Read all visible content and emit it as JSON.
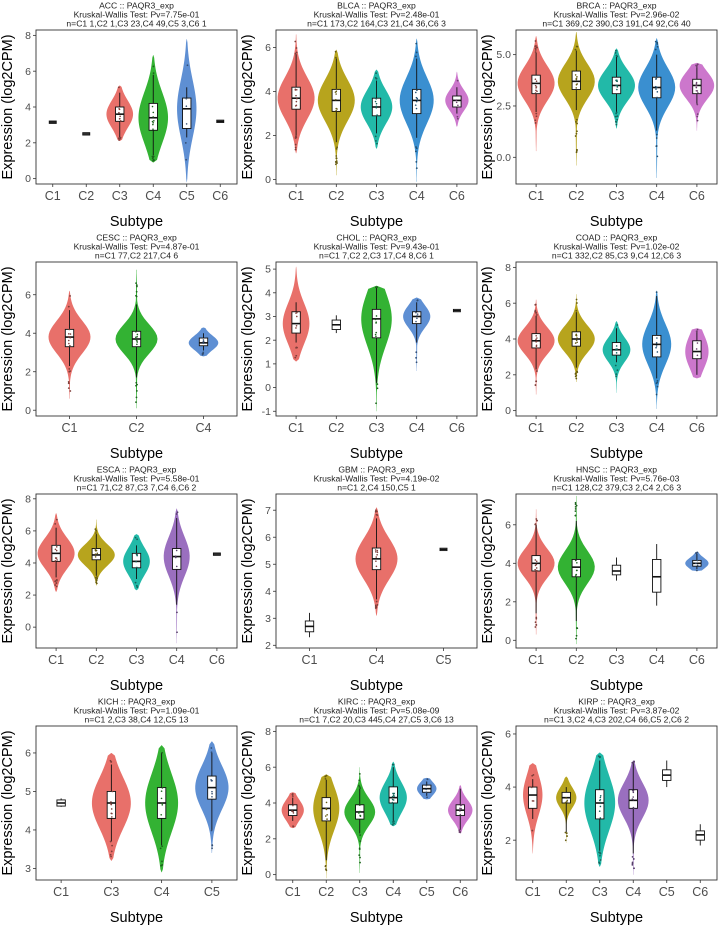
{
  "chart_data": [
    {
      "type": "violin",
      "title": "ACC :: PAQR3_exp",
      "subtitle": "Kruskal-Wallis Test: Pv=7.75e-01",
      "counts": "n=C1 1,C2 1,C3 23,C4 49,C5 3,C6 1",
      "xlabel": "Subtype",
      "ylabel": "Expression (log2CPM)",
      "ylim": [
        -0.3,
        8.3
      ],
      "yticks": [
        0,
        2,
        4,
        6,
        8
      ],
      "categories": [
        "C1",
        "C2",
        "C3",
        "C4",
        "C5",
        "C6"
      ],
      "groups": [
        {
          "category": "C1",
          "color": "#e8706a",
          "n": 1,
          "median": 3.15
        },
        {
          "category": "C2",
          "color": "#b7a41d",
          "n": 1,
          "median": 2.5
        },
        {
          "category": "C3",
          "color": "#e8706a",
          "n": 23,
          "min": 2.3,
          "q1": 3.2,
          "median": 3.6,
          "q3": 4.0,
          "max": 4.8,
          "vmin": 2.1,
          "vmax": 5.2
        },
        {
          "category": "C4",
          "color": "#33b233",
          "n": 49,
          "min": 1.3,
          "q1": 2.7,
          "median": 3.4,
          "q3": 4.2,
          "max": 5.8,
          "vmin": 0.9,
          "vmax": 6.9
        },
        {
          "category": "C5",
          "color": "#5e8fd3",
          "n": 3,
          "min": 2.3,
          "q1": 2.8,
          "median": 3.9,
          "q3": 4.5,
          "max": 5.1,
          "vmin": -0.2,
          "vmax": 7.8
        },
        {
          "category": "C6",
          "color": "#cc77cc",
          "n": 1,
          "median": 3.2
        }
      ]
    },
    {
      "type": "violin",
      "title": "BLCA :: PAQR3_exp",
      "subtitle": "Kruskal-Wallis Test: Pv=2.48e-01",
      "counts": "n=C1 173,C2 164,C3 21,C4 36,C6 3",
      "xlabel": "Subtype",
      "ylabel": "Expression (log2CPM)",
      "ylim": [
        -0.2,
        6.8
      ],
      "yticks": [
        0,
        2,
        4,
        6
      ],
      "categories": [
        "C1",
        "C2",
        "C3",
        "C4",
        "C6"
      ],
      "groups": [
        {
          "category": "C1",
          "color": "#e8706a",
          "n": 173,
          "min": 2.0,
          "q1": 3.2,
          "median": 3.7,
          "q3": 4.2,
          "max": 5.7,
          "vmin": 1.2,
          "vmax": 6.6
        },
        {
          "category": "C2",
          "color": "#b7a41d",
          "n": 164,
          "min": 1.7,
          "q1": 3.1,
          "median": 3.6,
          "q3": 4.1,
          "max": 5.5,
          "vmin": 0.2,
          "vmax": 5.9
        },
        {
          "category": "C3",
          "color": "#22b9a8",
          "n": 21,
          "min": 2.1,
          "q1": 2.9,
          "median": 3.3,
          "q3": 3.7,
          "max": 4.5,
          "vmin": 1.4,
          "vmax": 5.0
        },
        {
          "category": "C4",
          "color": "#3a8fd0",
          "n": 36,
          "min": 1.9,
          "q1": 3.0,
          "median": 3.6,
          "q3": 4.1,
          "max": 5.5,
          "vmin": -0.1,
          "vmax": 6.4
        },
        {
          "category": "C6",
          "color": "#cc77cc",
          "n": 3,
          "min": 3.0,
          "q1": 3.3,
          "median": 3.6,
          "q3": 3.8,
          "max": 4.2,
          "vmin": 2.4,
          "vmax": 4.9
        }
      ]
    },
    {
      "type": "violin",
      "title": "BRCA :: PAQR3_exp",
      "subtitle": "Kruskal-Wallis Test: Pv=2.96e-02",
      "counts": "n=C1 369,C2 390,C3 191,C4 92,C6 40",
      "xlabel": "Subtype",
      "ylabel": "Expression (log2CPM)",
      "ylim": [
        -1.3,
        6.2
      ],
      "yticks": [
        0,
        2.5,
        5
      ],
      "ytick_labels": [
        "0.0",
        "2.5",
        "5.0"
      ],
      "categories": [
        "C1",
        "C2",
        "C3",
        "C4",
        "C6"
      ],
      "groups": [
        {
          "category": "C1",
          "color": "#e8706a",
          "n": 369,
          "min": 2.2,
          "q1": 3.1,
          "median": 3.6,
          "q3": 4.0,
          "max": 5.1,
          "vmin": 0.3,
          "vmax": 5.9
        },
        {
          "category": "C2",
          "color": "#b7a41d",
          "n": 390,
          "min": 2.3,
          "q1": 3.3,
          "median": 3.7,
          "q3": 4.2,
          "max": 5.2,
          "vmin": -0.4,
          "vmax": 6.1
        },
        {
          "category": "C3",
          "color": "#22b9a8",
          "n": 191,
          "min": 2.2,
          "q1": 3.1,
          "median": 3.5,
          "q3": 3.9,
          "max": 4.9,
          "vmin": 1.4,
          "vmax": 5.3
        },
        {
          "category": "C4",
          "color": "#3a8fd0",
          "n": 92,
          "min": 1.3,
          "q1": 2.9,
          "median": 3.4,
          "q3": 3.9,
          "max": 5.0,
          "vmin": -1.0,
          "vmax": 5.8
        },
        {
          "category": "C6",
          "color": "#cc77cc",
          "n": 40,
          "min": 2.6,
          "q1": 3.1,
          "median": 3.5,
          "q3": 3.8,
          "max": 4.4,
          "vmin": 1.3,
          "vmax": 4.6
        }
      ]
    },
    {
      "type": "violin",
      "title": "CESC :: PAQR3_exp",
      "subtitle": "Kruskal-Wallis Test: Pv=4.87e-01",
      "counts": "n=C1 77,C2 217,C4 6",
      "xlabel": "Subtype",
      "ylabel": "Expression (log2CPM)",
      "ylim": [
        -0.3,
        7.7
      ],
      "yticks": [
        0,
        2,
        4,
        6
      ],
      "categories": [
        "C1",
        "C2",
        "C4"
      ],
      "groups": [
        {
          "category": "C1",
          "color": "#e8706a",
          "n": 77,
          "min": 2.3,
          "q1": 3.3,
          "median": 3.8,
          "q3": 4.2,
          "max": 5.2,
          "vmin": 0.6,
          "vmax": 6.2
        },
        {
          "category": "C2",
          "color": "#33b233",
          "n": 217,
          "min": 1.7,
          "q1": 3.3,
          "median": 3.7,
          "q3": 4.1,
          "max": 5.5,
          "vmin": 0.1,
          "vmax": 7.3
        },
        {
          "category": "C4",
          "color": "#5e8fd3",
          "n": 6,
          "min": 3.1,
          "q1": 3.35,
          "median": 3.5,
          "q3": 3.75,
          "max": 4.0,
          "vmin": 2.8,
          "vmax": 4.3
        }
      ]
    },
    {
      "type": "violin",
      "title": "CHOL :: PAQR3_exp",
      "subtitle": "Kruskal-Wallis Test: Pv=9.43e-01",
      "counts": "n=C1 7,C2 2,C3 17,C4 8,C6 1",
      "xlabel": "Subtype",
      "ylabel": "Expression (log2CPM)",
      "ylim": [
        -1.2,
        5.3
      ],
      "yticks": [
        -1,
        0,
        1,
        2,
        3,
        4,
        5
      ],
      "categories": [
        "C1",
        "C2",
        "C3",
        "C4",
        "C6"
      ],
      "groups": [
        {
          "category": "C1",
          "color": "#e8706a",
          "n": 7,
          "min": 1.9,
          "q1": 2.3,
          "median": 2.7,
          "q3": 3.2,
          "max": 3.6,
          "vmin": 1.1,
          "vmax": 5.1
        },
        {
          "category": "C2",
          "color": "#b7a41d",
          "n": 2,
          "min": 2.3,
          "q1": 2.45,
          "median": 2.65,
          "q3": 2.85,
          "max": 3.05
        },
        {
          "category": "C3",
          "color": "#33b233",
          "n": 17,
          "min": 0.2,
          "q1": 2.1,
          "median": 2.9,
          "q3": 3.3,
          "max": 4.2,
          "vmin": -1.0,
          "vmax": 4.3
        },
        {
          "category": "C4",
          "color": "#5e8fd3",
          "n": 8,
          "min": 1.9,
          "q1": 2.7,
          "median": 3.0,
          "q3": 3.2,
          "max": 3.6,
          "vmin": 0.7,
          "vmax": 3.8
        },
        {
          "category": "C6",
          "color": "#cc77cc",
          "n": 1,
          "median": 3.25
        }
      ]
    },
    {
      "type": "violin",
      "title": "COAD :: PAQR3_exp",
      "subtitle": "Kruskal-Wallis Test: Pv=1.02e-02",
      "counts": "n=C1 332,C2 85,C3 9,C4 12,C6 3",
      "xlabel": "Subtype",
      "ylabel": "Expression (log2CPM)",
      "ylim": [
        -0.3,
        8.3
      ],
      "yticks": [
        0,
        2,
        4,
        6,
        8
      ],
      "categories": [
        "C1",
        "C2",
        "C3",
        "C4",
        "C6"
      ],
      "groups": [
        {
          "category": "C1",
          "color": "#e8706a",
          "n": 332,
          "min": 2.3,
          "q1": 3.5,
          "median": 3.9,
          "q3": 4.3,
          "max": 5.3,
          "vmin": 0.9,
          "vmax": 6.2
        },
        {
          "category": "C2",
          "color": "#b7a41d",
          "n": 85,
          "min": 2.4,
          "q1": 3.6,
          "median": 4.0,
          "q3": 4.4,
          "max": 5.5,
          "vmin": 1.6,
          "vmax": 6.5
        },
        {
          "category": "C3",
          "color": "#22b9a8",
          "n": 9,
          "min": 2.7,
          "q1": 3.1,
          "median": 3.4,
          "q3": 3.8,
          "max": 4.6,
          "vmin": 1.0,
          "vmax": 5.0
        },
        {
          "category": "C4",
          "color": "#3a8fd0",
          "n": 12,
          "min": 1.8,
          "q1": 3.0,
          "median": 3.7,
          "q3": 4.2,
          "max": 6.4,
          "vmin": 0.1,
          "vmax": 6.7
        },
        {
          "category": "C6",
          "color": "#cc77cc",
          "n": 3,
          "min": 2.0,
          "q1": 2.9,
          "median": 3.3,
          "q3": 3.9,
          "max": 4.4,
          "vmin": 1.8,
          "vmax": 4.6
        }
      ]
    },
    {
      "type": "violin",
      "title": "ESCA :: PAQR3_exp",
      "subtitle": "Kruskal-Wallis Test: Pv=5.58e-01",
      "counts": "n=C1 71,C2 87,C3 7,C4 6,C6 2",
      "xlabel": "Subtype",
      "ylabel": "Expression (log2CPM)",
      "ylim": [
        -1.3,
        8.3
      ],
      "yticks": [
        0,
        2,
        4,
        6,
        8
      ],
      "categories": [
        "C1",
        "C2",
        "C3",
        "C4",
        "C6"
      ],
      "groups": [
        {
          "category": "C1",
          "color": "#e8706a",
          "n": 71,
          "min": 3.1,
          "q1": 4.1,
          "median": 4.6,
          "q3": 5.1,
          "max": 6.2,
          "vmin": 2.2,
          "vmax": 7.1
        },
        {
          "category": "C2",
          "color": "#b7a41d",
          "n": 87,
          "min": 3.2,
          "q1": 4.2,
          "median": 4.5,
          "q3": 4.9,
          "max": 5.8,
          "vmin": 2.6,
          "vmax": 6.7
        },
        {
          "category": "C3",
          "color": "#22b9a8",
          "n": 7,
          "min": 3.0,
          "q1": 3.7,
          "median": 4.1,
          "q3": 4.6,
          "max": 5.1,
          "vmin": 2.3,
          "vmax": 5.8
        },
        {
          "category": "C4",
          "color": "#9a6fbf",
          "n": 6,
          "min": 1.4,
          "q1": 3.6,
          "median": 4.4,
          "q3": 4.9,
          "max": 6.8,
          "vmin": -1.0,
          "vmax": 7.4
        },
        {
          "category": "C6",
          "color": "#cc77cc",
          "n": 2,
          "median": 4.55
        }
      ]
    },
    {
      "type": "violin",
      "title": "GBM :: PAQR3_exp",
      "subtitle": "Kruskal-Wallis Test: Pv=4.19e-02",
      "counts": "n=C1 2,C4 150,C5 1",
      "xlabel": "Subtype",
      "ylabel": "Expression (log2CPM)",
      "ylim": [
        1.9,
        7.6
      ],
      "yticks": [
        2,
        3,
        4,
        5,
        6,
        7
      ],
      "categories": [
        "C1",
        "C4",
        "C5"
      ],
      "groups": [
        {
          "category": "C1",
          "color": "#e8706a",
          "n": 2,
          "min": 2.3,
          "q1": 2.5,
          "median": 2.7,
          "q3": 2.9,
          "max": 3.2
        },
        {
          "category": "C4",
          "color": "#e8706a",
          "n": 150,
          "min": 3.7,
          "q1": 4.8,
          "median": 5.2,
          "q3": 5.6,
          "max": 6.7,
          "vmin": 3.1,
          "vmax": 7.1
        },
        {
          "category": "C5",
          "color": "#5e8fd3",
          "n": 1,
          "median": 5.55
        }
      ]
    },
    {
      "type": "violin",
      "title": "HNSC :: PAQR3_exp",
      "subtitle": "Kruskal-Wallis Test: Pv=5.76e-03",
      "counts": "n=C1 128,C2 379,C3 2,C4 2,C6 3",
      "xlabel": "Subtype",
      "ylabel": "Expression (log2CPM)",
      "ylim": [
        -0.4,
        7.6
      ],
      "yticks": [
        0,
        2,
        4,
        6
      ],
      "categories": [
        "C1",
        "C2",
        "C3",
        "C4",
        "C6"
      ],
      "groups": [
        {
          "category": "C1",
          "color": "#e8706a",
          "n": 128,
          "min": 1.4,
          "q1": 3.6,
          "median": 4.0,
          "q3": 4.4,
          "max": 6.0,
          "vmin": 0.3,
          "vmax": 6.8
        },
        {
          "category": "C2",
          "color": "#33b233",
          "n": 379,
          "min": 1.0,
          "q1": 3.3,
          "median": 3.8,
          "q3": 4.2,
          "max": 6.2,
          "vmin": -0.2,
          "vmax": 7.5
        },
        {
          "category": "C3",
          "color": "#22b9a8",
          "n": 2,
          "min": 3.1,
          "q1": 3.4,
          "median": 3.6,
          "q3": 3.9,
          "max": 4.3
        },
        {
          "category": "C4",
          "color": "#5e8fd3",
          "n": 2,
          "min": 1.8,
          "q1": 2.5,
          "median": 3.3,
          "q3": 4.2,
          "max": 5.0
        },
        {
          "category": "C6",
          "color": "#5e8fd3",
          "n": 3,
          "min": 3.7,
          "q1": 3.85,
          "median": 4.0,
          "q3": 4.15,
          "max": 4.5,
          "vmin": 3.6,
          "vmax": 4.6
        }
      ]
    },
    {
      "type": "violin",
      "title": "KICH :: PAQR3_exp",
      "subtitle": "Kruskal-Wallis Test: Pv=1.09e-01",
      "counts": "n=C1 2,C3 38,C4 12,C5 13",
      "xlabel": "Subtype",
      "ylabel": "Expression (log2CPM)",
      "ylim": [
        2.7,
        6.7
      ],
      "yticks": [
        3,
        4,
        5,
        6
      ],
      "categories": [
        "C1",
        "C3",
        "C4",
        "C5"
      ],
      "groups": [
        {
          "category": "C1",
          "color": "#e8706a",
          "n": 2,
          "min": 4.6,
          "q1": 4.62,
          "median": 4.7,
          "q3": 4.78,
          "max": 4.82
        },
        {
          "category": "C3",
          "color": "#e8706a",
          "n": 38,
          "min": 3.7,
          "q1": 4.3,
          "median": 4.7,
          "q3": 5.0,
          "max": 5.7,
          "vmin": 3.2,
          "vmax": 6.0
        },
        {
          "category": "C4",
          "color": "#33b233",
          "n": 12,
          "min": 3.6,
          "q1": 4.3,
          "median": 4.7,
          "q3": 5.1,
          "max": 6.0,
          "vmin": 2.9,
          "vmax": 6.2
        },
        {
          "category": "C5",
          "color": "#5e8fd3",
          "n": 13,
          "min": 4.0,
          "q1": 4.8,
          "median": 5.1,
          "q3": 5.4,
          "max": 6.0,
          "vmin": 3.4,
          "vmax": 6.3
        }
      ]
    },
    {
      "type": "violin",
      "title": "KIRC :: PAQR3_exp",
      "subtitle": "Kruskal-Wallis Test: Pv=5.08e-09",
      "counts": "n=C1 7,C2 20,C3 445,C4 27,C5 3,C6 13",
      "xlabel": "Subtype",
      "ylabel": "Expression (log2CPM)",
      "ylim": [
        -0.3,
        8.3
      ],
      "yticks": [
        0,
        2,
        4,
        6,
        8
      ],
      "categories": [
        "C1",
        "C2",
        "C3",
        "C4",
        "C5",
        "C6"
      ],
      "groups": [
        {
          "category": "C1",
          "color": "#e8706a",
          "n": 7,
          "min": 3.0,
          "q1": 3.3,
          "median": 3.6,
          "q3": 3.9,
          "max": 4.3,
          "vmin": 2.6,
          "vmax": 4.6
        },
        {
          "category": "C2",
          "color": "#b7a41d",
          "n": 20,
          "min": 0.8,
          "q1": 3.0,
          "median": 3.7,
          "q3": 4.3,
          "max": 5.3,
          "vmin": -0.2,
          "vmax": 5.6
        },
        {
          "category": "C3",
          "color": "#33b233",
          "n": 445,
          "min": 2.3,
          "q1": 3.1,
          "median": 3.5,
          "q3": 3.9,
          "max": 4.8,
          "vmin": 0.1,
          "vmax": 6.0
        },
        {
          "category": "C4",
          "color": "#22b9a8",
          "n": 27,
          "min": 3.0,
          "q1": 4.0,
          "median": 4.3,
          "q3": 4.9,
          "max": 6.0,
          "vmin": 2.7,
          "vmax": 6.3
        },
        {
          "category": "C5",
          "color": "#5e8fd3",
          "n": 3,
          "min": 4.4,
          "q1": 4.6,
          "median": 4.8,
          "q3": 5.0,
          "max": 5.2,
          "vmin": 4.2,
          "vmax": 5.4
        },
        {
          "category": "C6",
          "color": "#cc77cc",
          "n": 13,
          "min": 2.5,
          "q1": 3.3,
          "median": 3.6,
          "q3": 3.9,
          "max": 4.8,
          "vmin": 2.3,
          "vmax": 5.0
        }
      ]
    },
    {
      "type": "violin",
      "title": "KIRP :: PAQR3_exp",
      "subtitle": "Kruskal-Wallis Test: Pv=3.87e-02",
      "counts": "n=C1 3,C2 4,C3 202,C4 66,C5 2,C6 2",
      "xlabel": "Subtype",
      "ylabel": "Expression (log2CPM)",
      "ylim": [
        0.5,
        6.3
      ],
      "yticks": [
        2,
        4,
        6
      ],
      "categories": [
        "C1",
        "C2",
        "C3",
        "C4",
        "C5",
        "C6"
      ],
      "groups": [
        {
          "category": "C1",
          "color": "#e8706a",
          "n": 3,
          "min": 2.8,
          "q1": 3.2,
          "median": 3.7,
          "q3": 4.0,
          "max": 4.3,
          "vmin": 1.5,
          "vmax": 4.9
        },
        {
          "category": "C2",
          "color": "#b7a41d",
          "n": 4,
          "min": 2.3,
          "q1": 3.4,
          "median": 3.6,
          "q3": 3.8,
          "max": 4.0,
          "vmin": 1.9,
          "vmax": 4.4
        },
        {
          "category": "C3",
          "color": "#22b9a8",
          "n": 202,
          "min": 1.6,
          "q1": 2.8,
          "median": 3.4,
          "q3": 3.9,
          "max": 5.0,
          "vmin": 1.0,
          "vmax": 5.3
        },
        {
          "category": "C4",
          "color": "#9a6fbf",
          "n": 66,
          "min": 1.5,
          "q1": 3.2,
          "median": 3.5,
          "q3": 3.9,
          "max": 4.9,
          "vmin": 0.7,
          "vmax": 5.0
        },
        {
          "category": "C5",
          "color": "#e8706a",
          "n": 2,
          "min": 4.0,
          "q1": 4.25,
          "median": 4.45,
          "q3": 4.65,
          "max": 5.0
        },
        {
          "category": "C6",
          "color": "#e8706a",
          "n": 2,
          "min": 1.8,
          "q1": 2.0,
          "median": 2.2,
          "q3": 2.35,
          "max": 2.6
        }
      ]
    }
  ]
}
